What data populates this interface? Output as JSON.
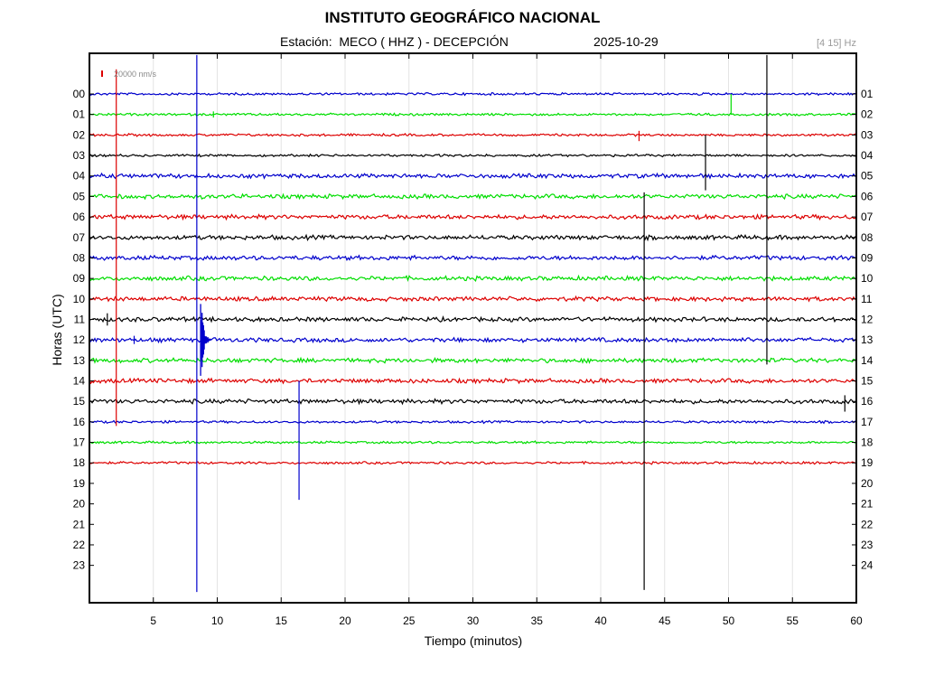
{
  "chart_data": {
    "type": "line",
    "title": "INSTITUTO GEOGRÁFICO NACIONAL",
    "subtitle": "Estación:  MECO ( HHZ ) - DECEPCIÓN",
    "date": "2025-10-29",
    "filter_label": "[4 15] Hz",
    "xlabel": "Tiempo (minutos)",
    "ylabel": "Horas (UTC)",
    "xlim": [
      0,
      60
    ],
    "x_ticks": [
      5,
      10,
      15,
      20,
      25,
      30,
      35,
      40,
      45,
      50,
      55,
      60
    ],
    "left_hour_labels": [
      "00",
      "01",
      "02",
      "03",
      "04",
      "05",
      "06",
      "07",
      "08",
      "09",
      "10",
      "11",
      "12",
      "13",
      "14",
      "15",
      "16",
      "17",
      "18",
      "19",
      "20",
      "21",
      "22",
      "23"
    ],
    "right_hour_labels": [
      "01",
      "02",
      "03",
      "04",
      "05",
      "06",
      "07",
      "08",
      "09",
      "10",
      "11",
      "12",
      "13",
      "14",
      "15",
      "16",
      "17",
      "18",
      "19",
      "20",
      "21",
      "22",
      "23",
      "24"
    ],
    "scale_label": "20000 nm/s",
    "grid": true,
    "series_colors": [
      "#0000cc",
      "#00dd00",
      "#dd0000",
      "#000000"
    ],
    "scale_color": "#dd0000",
    "recorded_hours": 19,
    "last_trace_end_minute": 60,
    "events": [
      {
        "hour": 0,
        "minute": 50.2,
        "up": 0,
        "down": 1.0,
        "color": "#00dd00"
      },
      {
        "hour": 2,
        "minute": 43.0,
        "up": 0.2,
        "down": 0.3,
        "color": "#dd0000"
      },
      {
        "hour": 3,
        "minute": 48.2,
        "up": 1.0,
        "down": 1.7,
        "color": "#000000"
      },
      {
        "hour": 0,
        "minute": 53.0,
        "up": 1.9,
        "down": 13.2,
        "color": "#000000"
      },
      {
        "hour": 0,
        "minute": 2.1,
        "up": 1.2,
        "down": 16.2,
        "color": "#dd0000"
      },
      {
        "hour": 0,
        "minute": 8.4,
        "up": 1.9,
        "down": 24.3,
        "color": "#0000cc"
      },
      {
        "hour": 5,
        "minute": 43.4,
        "up": 0.2,
        "down": 19.2,
        "color": "#000000"
      },
      {
        "hour": 14,
        "minute": 16.4,
        "up": 0,
        "down": 5.8,
        "color": "#0000cc"
      },
      {
        "hour": 15,
        "minute": 59.1,
        "up": 0.3,
        "down": 0.5,
        "color": "#000000"
      },
      {
        "hour": 11,
        "minute": 1.4,
        "up": 0.3,
        "down": 0.3,
        "color": "#000000"
      },
      {
        "hour": 12,
        "minute": 3.5,
        "up": 0.2,
        "down": 0.2,
        "color": "#0000cc"
      },
      {
        "hour": 1,
        "minute": 9.7,
        "up": 0.15,
        "down": 0.15,
        "color": "#00dd00"
      }
    ],
    "local_event": {
      "hour": 12,
      "minute": 8.7,
      "duration_minutes": 0.8,
      "amplitude_rows": 2.4,
      "color": "#0000cc"
    }
  }
}
